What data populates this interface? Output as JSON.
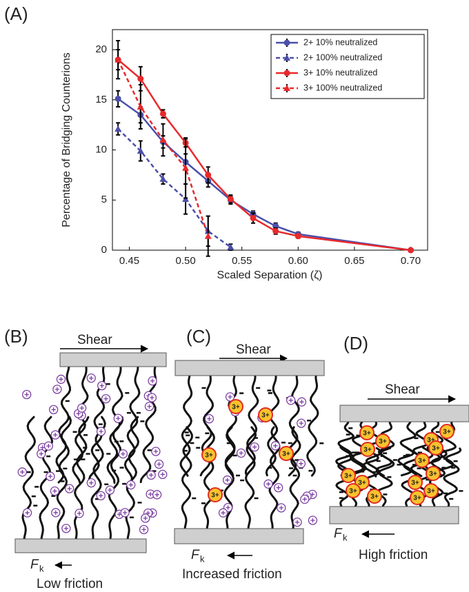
{
  "chart_data": {
    "type": "line",
    "panel_label": "(A)",
    "x_label": "Scaled Separation (ζ)",
    "y_label": "Percentage of Bridging Counterions",
    "xlim": [
      0.435,
      0.715
    ],
    "ylim": [
      0,
      22
    ],
    "xticks": [
      0.45,
      {
        "value": 0.5,
        "label": "0.50"
      },
      0.55,
      {
        "value": 0.6,
        "label": "0.60"
      },
      0.65,
      {
        "value": 0.7,
        "label": "0.70"
      }
    ],
    "yticks": [
      0,
      5,
      10,
      15,
      20
    ],
    "legend": "upper right",
    "series": [
      {
        "name": "2+ 10% neutralized",
        "color": "#4b4fa8",
        "dash": false,
        "marker": "circle",
        "x": [
          0.44,
          0.46,
          0.48,
          0.5,
          0.52,
          0.54,
          0.56,
          0.58,
          0.6,
          0.7
        ],
        "values": [
          15.1,
          13.5,
          10.8,
          8.8,
          6.9,
          5.0,
          3.6,
          2.4,
          1.6,
          0
        ],
        "errors": [
          0.8,
          0.8,
          0.6,
          0.8,
          0.6,
          0.4,
          0.3,
          0.3,
          0.2,
          0.1
        ]
      },
      {
        "name": "2+ 100% neutralized",
        "color": "#4b4fa8",
        "dash": true,
        "marker": "triangle",
        "x": [
          0.44,
          0.46,
          0.48,
          0.5,
          0.52,
          0.54
        ],
        "values": [
          12.1,
          9.9,
          7.1,
          5.1,
          1.9,
          0.3
        ],
        "errors": [
          0.6,
          1.0,
          0.5,
          1.5,
          1.5,
          0.3
        ]
      },
      {
        "name": "3+ 10% neutralized",
        "color": "#e8292b",
        "dash": false,
        "marker": "circle",
        "x": [
          0.44,
          0.46,
          0.48,
          0.5,
          0.52,
          0.54,
          0.56,
          0.58,
          0.6,
          0.7
        ],
        "values": [
          19.0,
          17.1,
          13.6,
          10.7,
          7.5,
          5.1,
          3.2,
          1.9,
          1.4,
          0
        ],
        "errors": [
          1.0,
          1.2,
          0.4,
          0.4,
          0.8,
          0.4,
          0.5,
          0.3,
          0.2,
          0.1
        ]
      },
      {
        "name": "3+ 100% neutralized",
        "color": "#e8292b",
        "dash": true,
        "marker": "triangle",
        "x": [
          0.44,
          0.46,
          0.48,
          0.5,
          0.52
        ],
        "values": [
          19.0,
          14.3,
          11.0,
          8.2,
          1.4
        ],
        "errors": [
          1.9,
          2.2,
          1.6,
          3.0,
          2.0
        ]
      }
    ]
  },
  "panels": {
    "counterion_label": "3+",
    "force_symbol": "F",
    "force_subscript": "k",
    "B": {
      "label": "(B)",
      "shear": "Shear",
      "friction": "Low friction"
    },
    "C": {
      "label": "(C)",
      "shear": "Shear",
      "friction": "Increased friction"
    },
    "D": {
      "label": "(D)",
      "shear": "Shear",
      "friction": "High friction"
    }
  }
}
